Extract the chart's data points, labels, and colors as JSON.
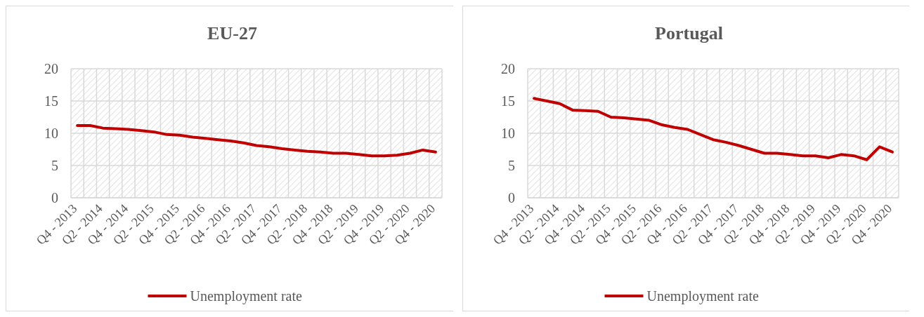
{
  "chart_data": [
    {
      "type": "line",
      "title": "EU-27",
      "categories": [
        "Q4 - 2013",
        null,
        "Q2 - 2014",
        null,
        "Q4 - 2014",
        null,
        "Q2 - 2015",
        null,
        "Q4 - 2015",
        null,
        "Q2 - 2016",
        null,
        "Q4 - 2016",
        null,
        "Q2 - 2017",
        null,
        "Q4 - 2017",
        null,
        "Q2 - 2018",
        null,
        "Q4 - 2018",
        null,
        "Q2 - 2019",
        null,
        "Q4 - 2019",
        null,
        "Q2 - 2020",
        null,
        "Q4 - 2020"
      ],
      "series": [
        {
          "name": "Unemployment rate",
          "color": "#c00000",
          "values": [
            11.2,
            11.2,
            10.8,
            10.7,
            10.6,
            10.4,
            10.2,
            9.8,
            9.7,
            9.4,
            9.2,
            9.0,
            8.8,
            8.5,
            8.1,
            7.9,
            7.6,
            7.4,
            7.2,
            7.1,
            6.9,
            6.9,
            6.7,
            6.5,
            6.5,
            6.6,
            6.9,
            7.4,
            7.1
          ]
        }
      ],
      "ylim": [
        0,
        20
      ],
      "yticks": [
        0,
        5,
        10,
        15,
        20
      ],
      "grid": true,
      "legend": "bottom",
      "marker": "none",
      "line_style": "solid"
    },
    {
      "type": "line",
      "title": "Portugal",
      "categories": [
        "Q4 - 2013",
        null,
        "Q2 - 2014",
        null,
        "Q4 - 2014",
        null,
        "Q2 - 2015",
        null,
        "Q4 - 2015",
        null,
        "Q2 - 2016",
        null,
        "Q4 - 2016",
        null,
        "Q2 - 2017",
        null,
        "Q4 - 2017",
        null,
        "Q2 - 2018",
        null,
        "Q4 - 2018",
        null,
        "Q2 - 2019",
        null,
        "Q4 - 2019",
        null,
        "Q2 - 2020",
        null,
        "Q4 - 2020"
      ],
      "series": [
        {
          "name": "Unemployment rate",
          "color": "#c00000",
          "values": [
            15.4,
            15.0,
            14.6,
            13.6,
            13.5,
            13.4,
            12.5,
            12.4,
            12.2,
            12.0,
            11.3,
            10.9,
            10.6,
            9.8,
            9.0,
            8.6,
            8.1,
            7.5,
            6.9,
            6.9,
            6.7,
            6.5,
            6.5,
            6.2,
            6.7,
            6.5,
            5.9,
            7.9,
            7.1
          ]
        }
      ],
      "ylim": [
        0,
        20
      ],
      "yticks": [
        0,
        5,
        10,
        15,
        20
      ],
      "grid": true,
      "legend": "bottom",
      "marker": "none",
      "line_style": "solid"
    }
  ]
}
